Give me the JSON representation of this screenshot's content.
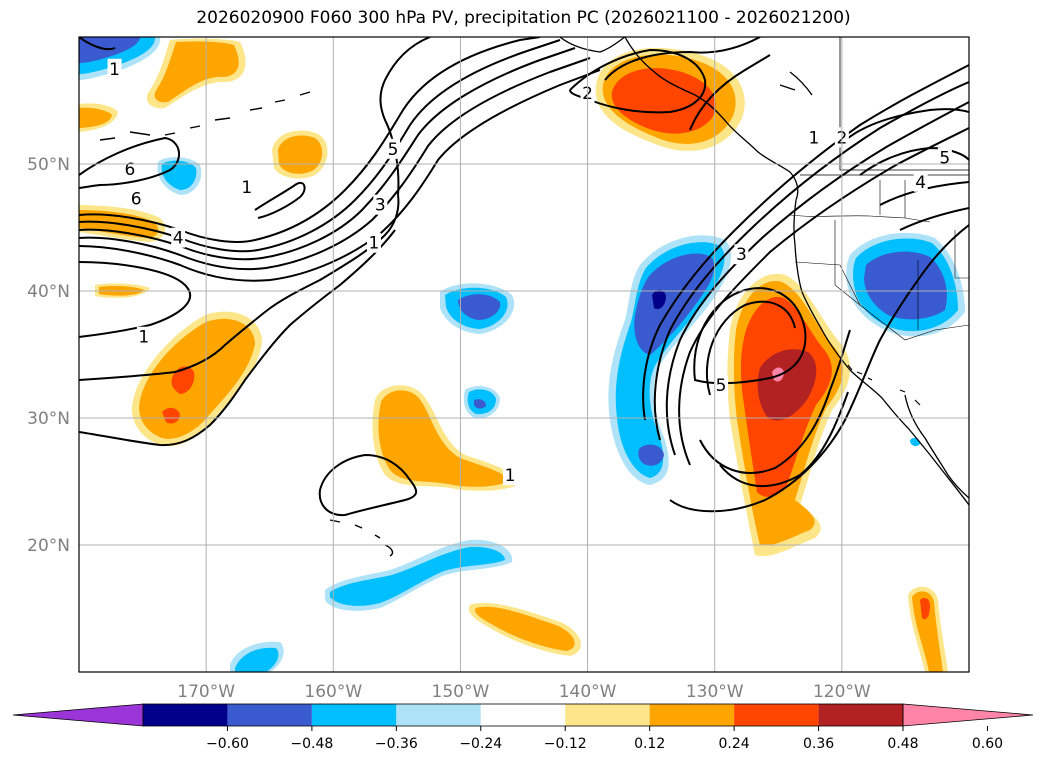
{
  "title": "2026020900 F060 300 hPa PV, precipitation PC (2026021100 - 2026021200)",
  "map": {
    "lon_range": [
      -180,
      -110
    ],
    "lat_range": [
      10,
      60
    ],
    "lat_ticks": [
      {
        "value": 20,
        "label": "20°N"
      },
      {
        "value": 30,
        "label": "30°N"
      },
      {
        "value": 40,
        "label": "40°N"
      },
      {
        "value": 50,
        "label": "50°N"
      }
    ],
    "lon_ticks": [
      {
        "value": -170,
        "label": "170°W"
      },
      {
        "value": -160,
        "label": "160°W"
      },
      {
        "value": -150,
        "label": "150°W"
      },
      {
        "value": -140,
        "label": "140°W"
      },
      {
        "value": -130,
        "label": "130°W"
      },
      {
        "value": -120,
        "label": "120°W"
      }
    ]
  },
  "pv_contour_labels": [
    {
      "text": "1",
      "lon": -177.2,
      "lat": 57.5
    },
    {
      "text": "6",
      "lon": -176,
      "lat": 49.6
    },
    {
      "text": "6",
      "lon": -175.5,
      "lat": 47.3
    },
    {
      "text": "4",
      "lon": -172.2,
      "lat": 44.2
    },
    {
      "text": "1",
      "lon": -174.9,
      "lat": 36.4
    },
    {
      "text": "1",
      "lon": -166.8,
      "lat": 48.2
    },
    {
      "text": "5",
      "lon": -155.3,
      "lat": 51.2
    },
    {
      "text": "3",
      "lon": -156.3,
      "lat": 46.8
    },
    {
      "text": "1",
      "lon": -156.8,
      "lat": 43.8
    },
    {
      "text": "2",
      "lon": -140,
      "lat": 55.6
    },
    {
      "text": "1",
      "lon": -146.1,
      "lat": 25.5
    },
    {
      "text": "3",
      "lon": -127.9,
      "lat": 42.9
    },
    {
      "text": "5",
      "lon": -129.5,
      "lat": 32.6
    },
    {
      "text": "1",
      "lon": -122.2,
      "lat": 52.1
    },
    {
      "text": "2",
      "lon": -120,
      "lat": 52.1
    },
    {
      "text": "5",
      "lon": -111.9,
      "lat": 50.5
    },
    {
      "text": "4",
      "lon": -113.8,
      "lat": 48.6
    }
  ],
  "colorbar": {
    "tick_labels": [
      "−0.60",
      "−0.48",
      "−0.36",
      "−0.24",
      "−0.12",
      "0.12",
      "0.24",
      "0.36",
      "0.48",
      "0.60"
    ],
    "bins": [
      {
        "from": null,
        "to": -0.6,
        "color": "#9b35d8"
      },
      {
        "from": -0.6,
        "to": -0.48,
        "color": "#00008b"
      },
      {
        "from": -0.48,
        "to": -0.36,
        "color": "#3a5ad0"
      },
      {
        "from": -0.36,
        "to": -0.24,
        "color": "#00bfff"
      },
      {
        "from": -0.24,
        "to": -0.12,
        "color": "#ade2f8"
      },
      {
        "from": -0.12,
        "to": 0.12,
        "color": "#ffffff"
      },
      {
        "from": 0.12,
        "to": 0.24,
        "color": "#fde68a"
      },
      {
        "from": 0.24,
        "to": 0.36,
        "color": "#ffa500"
      },
      {
        "from": 0.36,
        "to": 0.48,
        "color": "#ff4500"
      },
      {
        "from": 0.48,
        "to": 0.6,
        "color": "#b22222"
      },
      {
        "from": 0.6,
        "to": null,
        "color": "#ff85a8"
      }
    ]
  },
  "colors": {
    "grid": "#b0b0b0",
    "coast": "#000000",
    "contour": "#000000"
  }
}
